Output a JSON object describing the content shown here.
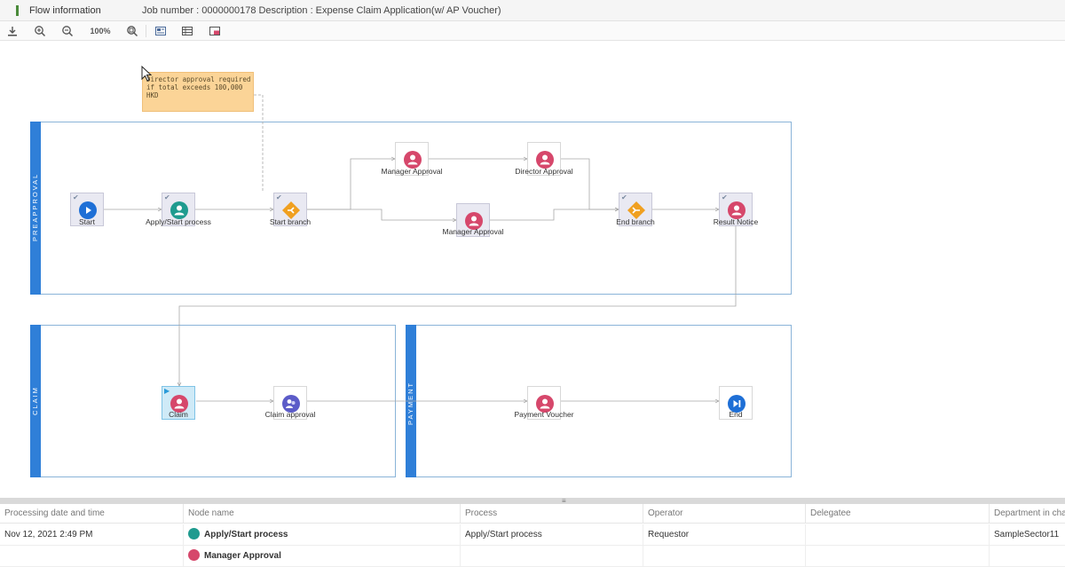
{
  "header": {
    "flow_label": "Flow information",
    "job_text": "Job number : 0000000178 Description : Expense Claim Application(w/ AP Voucher)"
  },
  "toolbar": {
    "zoom_level": "100%",
    "items": [
      "download-icon",
      "zoom-in-icon",
      "zoom-out-icon",
      "fit-zoom-icon",
      "node-view-icon",
      "table-view-icon",
      "window-view-icon"
    ]
  },
  "note": {
    "text": "Director approval required\nif total exceeds 100,000\nHKD"
  },
  "lanes": [
    {
      "name": "PREAPPROVAL"
    },
    {
      "name": "CLAIM"
    },
    {
      "name": "PAYMENT"
    }
  ],
  "nodes": {
    "start": {
      "label": "Start",
      "icon": "play-icon",
      "state": "done"
    },
    "apply": {
      "label": "Apply/Start process",
      "icon": "user-icon",
      "state": "done"
    },
    "start_branch": {
      "label": "Start branch",
      "icon": "branch-start-icon",
      "state": "done"
    },
    "manager_top": {
      "label": "Manager Approval",
      "icon": "user-icon",
      "state": "pending"
    },
    "director": {
      "label": "Director Approval",
      "icon": "user-icon",
      "state": "pending"
    },
    "manager_bottom": {
      "label": "Manager Approval",
      "icon": "user-icon",
      "state": "done"
    },
    "end_branch": {
      "label": "End branch",
      "icon": "branch-end-icon",
      "state": "done"
    },
    "result_notice": {
      "label": "Result Notice",
      "icon": "user-icon",
      "state": "done"
    },
    "claim": {
      "label": "Claim",
      "icon": "user-icon",
      "state": "current"
    },
    "claim_approval": {
      "label": "Claim approval",
      "icon": "group-user-icon",
      "state": "pending"
    },
    "payment_voucher": {
      "label": "Payment Voucher",
      "icon": "user-icon",
      "state": "pending"
    },
    "end": {
      "label": "End",
      "icon": "skip-end-icon",
      "state": "pending"
    }
  },
  "colors": {
    "lane_bar": "#2f7fd8",
    "user_icon": "#d6476b",
    "apply_icon": "#1f9b8f",
    "branch_icon": "#f0a020",
    "start_icon": "#1e6fd6",
    "group_icon": "#5b5bc8"
  },
  "history": {
    "columns": [
      "Processing date and time",
      "Node name",
      "Process",
      "Operator",
      "Delegatee",
      "Department in charge"
    ],
    "rows": [
      {
        "date": "Nov 12, 2021 2:49 PM",
        "node": "Apply/Start process",
        "process": "Apply/Start process",
        "operator": "Requestor",
        "delegatee": "",
        "department": "SampleSector11",
        "avatar_color": "#1f9b8f"
      },
      {
        "date": "",
        "node": "Manager Approval",
        "process": "",
        "operator": "",
        "delegatee": "",
        "department": "",
        "avatar_color": "#d6476b"
      }
    ]
  }
}
